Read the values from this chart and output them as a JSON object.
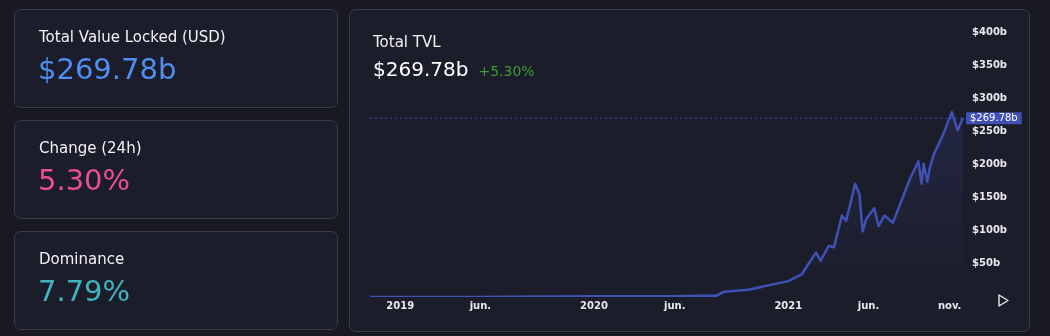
{
  "chart_data": [
    {
      "type": "other",
      "title": "Total Value Locked (USD)",
      "annotations": [
        "$269.78b"
      ]
    },
    {
      "type": "other",
      "title": "Change (24h)",
      "annotations": [
        "5.30%"
      ]
    },
    {
      "type": "other",
      "title": "Dominance",
      "annotations": [
        "7.79%"
      ]
    },
    {
      "type": "area",
      "title": "Total TVL",
      "subtitle": "$269.78b",
      "annotations": [
        "+5.30%"
      ],
      "series": [
        {
          "color": "#4051b5",
          "x": [
            "2018-11-05",
            "2019-06-01",
            "2020-01-01",
            "2020-06-01",
            "2020-07-15",
            "2020-08-19",
            "2020-09-02",
            "2020-10-18",
            "2021-01-01",
            "2021-01-26",
            "2021-02-22",
            "2021-03-03",
            "2021-03-18",
            "2021-03-28",
            "2021-04-12",
            "2021-04-20",
            "2021-05-07",
            "2021-05-15",
            "2021-05-21",
            "2021-05-28",
            "2021-06-12",
            "2021-06-20",
            "2021-07-01",
            "2021-07-17",
            "2021-08-19",
            "2021-09-03",
            "2021-09-09",
            "2021-09-13",
            "2021-09-20",
            "2021-09-24",
            "2021-10-02",
            "2021-10-19",
            "2021-11-05",
            "2021-11-16",
            "2021-11-26"
          ],
          "values": [
            0,
            0,
            1,
            1,
            2,
            2,
            8,
            11,
            24,
            34,
            67,
            55,
            77,
            75,
            123,
            115,
            171,
            155,
            99,
            118,
            134,
            107,
            123,
            112,
            180,
            205,
            171,
            201,
            174,
            193,
            215,
            244,
            279,
            252,
            270
          ]
        }
      ],
      "xlim": [
        "2018-11-05",
        "2021-11-28"
      ],
      "xticks": [
        {
          "value": "2019-01-01",
          "label": "2019"
        },
        {
          "value": "2019-06-01",
          "label": "jun."
        },
        {
          "value": "2020-01-01",
          "label": "2020"
        },
        {
          "value": "2020-06-01",
          "label": "jun."
        },
        {
          "value": "2021-01-01",
          "label": "2021"
        },
        {
          "value": "2021-06-01",
          "label": "jun."
        },
        {
          "value": "2021-11-01",
          "label": "nov."
        }
      ],
      "ylim": [
        0,
        400
      ],
      "yticks": [
        {
          "value": 50,
          "label": "$50b"
        },
        {
          "value": 100,
          "label": "$100b"
        },
        {
          "value": 150,
          "label": "$150b"
        },
        {
          "value": 200,
          "label": "$200b"
        },
        {
          "value": 250,
          "label": "$250b"
        },
        {
          "value": 300,
          "label": "$300b"
        },
        {
          "value": 350,
          "label": "$350b"
        },
        {
          "value": 400,
          "label": "$400b"
        }
      ],
      "ref_lines": [
        {
          "axis": "y",
          "value": 269.78,
          "label": "$269.78b",
          "color": "#4051b5",
          "line_style": "dotted"
        }
      ],
      "grid": false,
      "legend": false,
      "marker": "none"
    }
  ]
}
